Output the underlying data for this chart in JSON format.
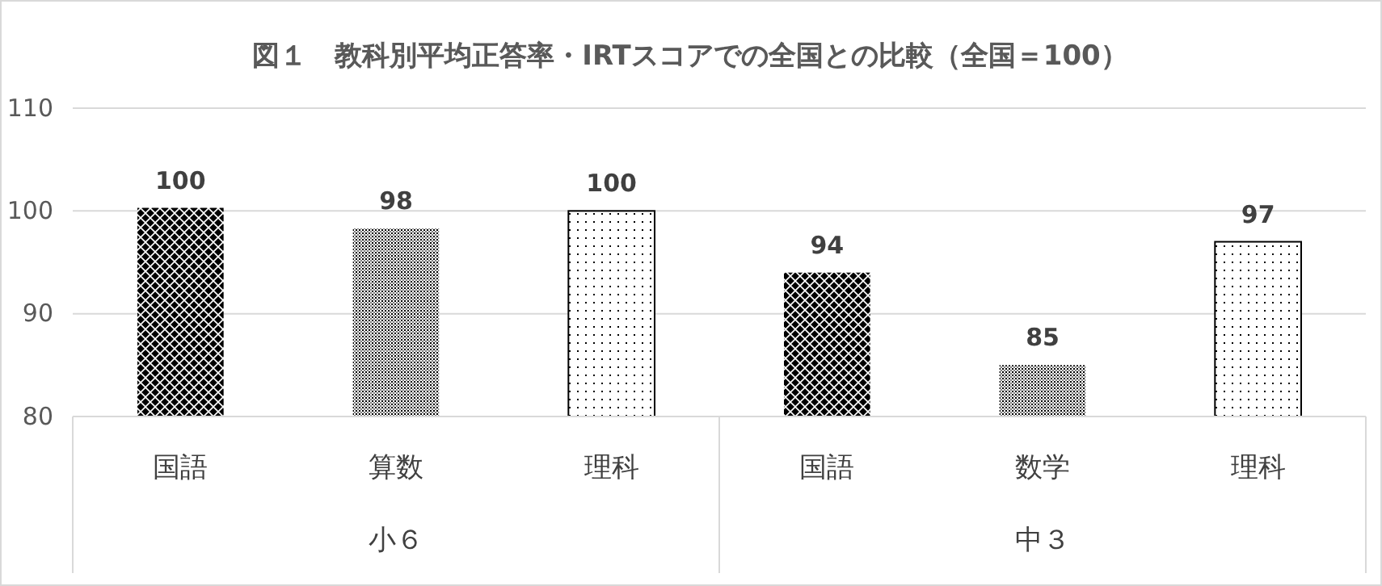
{
  "chart_data": {
    "type": "bar",
    "title": "図１　教科別平均正答率・IRTスコアでの全国との比較（全国＝100）",
    "categories": [
      "国語",
      "算数",
      "理科",
      "国語",
      "数学",
      "理科"
    ],
    "values": [
      100.3,
      98.3,
      100,
      94,
      85,
      97
    ],
    "colors": [
      "#000000",
      "#808080",
      "#ffffff",
      "#000000",
      "#808080",
      "#ffffff"
    ],
    "value_labels": [
      "100",
      "98",
      "100",
      "94",
      "85",
      "97"
    ],
    "ylim": [
      80,
      110
    ],
    "yticks": [
      80,
      90,
      100,
      110
    ],
    "grid": "y",
    "annotations": [
      "小６",
      "中３"
    ]
  }
}
